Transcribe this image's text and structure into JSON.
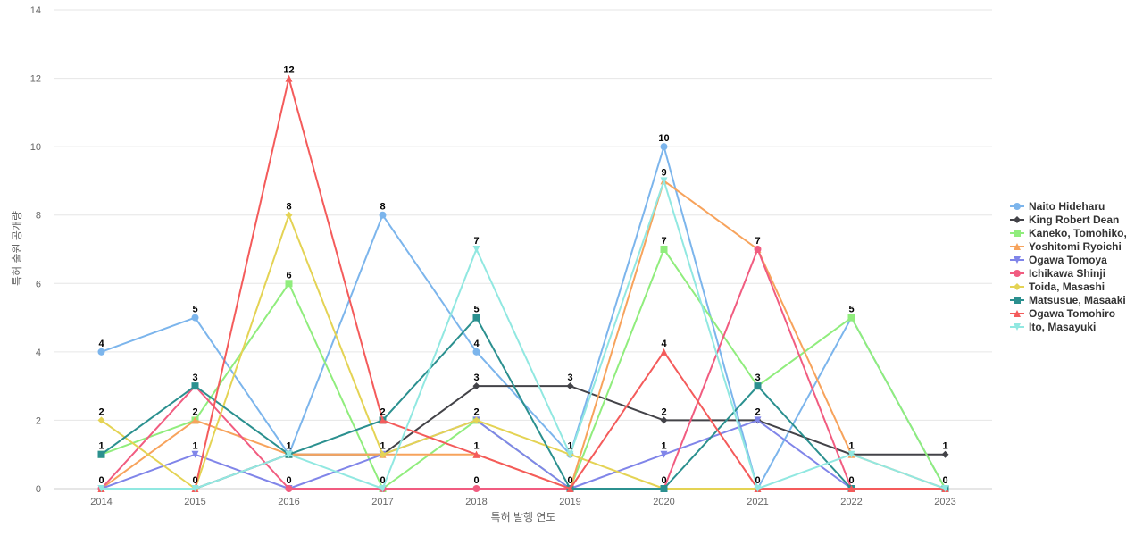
{
  "chart_data": {
    "type": "line",
    "title": "",
    "xlabel": "특허 발행 연도",
    "ylabel": "특허 출원 공개량",
    "x": [
      "2014",
      "2015",
      "2016",
      "2017",
      "2018",
      "2019",
      "2020",
      "2021",
      "2022",
      "2023"
    ],
    "ylim": [
      0,
      14
    ],
    "yticks": [
      0,
      2,
      4,
      6,
      8,
      10,
      12,
      14
    ],
    "grid": true,
    "legend_position": "right",
    "series": [
      {
        "name": "Naito Hideharu",
        "color": "#7cb5ec",
        "marker": "circle",
        "values": [
          4,
          5,
          1,
          8,
          4,
          1,
          10,
          0,
          5,
          0
        ]
      },
      {
        "name": "King Robert Dean",
        "color": "#434348",
        "marker": "diamond",
        "values": [
          0,
          0,
          1,
          1,
          3,
          3,
          2,
          2,
          1,
          1
        ]
      },
      {
        "name": "Kaneko, Tomohiko,",
        "color": "#90ed7d",
        "marker": "square",
        "values": [
          1,
          2,
          6,
          0,
          2,
          0,
          7,
          3,
          5,
          0
        ]
      },
      {
        "name": "Yoshitomi Ryoichi",
        "color": "#f7a35c",
        "marker": "triangle",
        "values": [
          0,
          2,
          1,
          1,
          1,
          0,
          9,
          7,
          1,
          0
        ]
      },
      {
        "name": "Ogawa Tomoya",
        "color": "#8085e9",
        "marker": "triangle-down",
        "values": [
          0,
          1,
          0,
          1,
          2,
          0,
          1,
          2,
          0,
          0
        ]
      },
      {
        "name": "Ichikawa Shinji",
        "color": "#f15c80",
        "marker": "circle",
        "values": [
          0,
          3,
          0,
          0,
          0,
          0,
          0,
          7,
          0,
          0
        ]
      },
      {
        "name": "Toida, Masashi",
        "color": "#e4d354",
        "marker": "diamond",
        "values": [
          2,
          0,
          8,
          1,
          2,
          1,
          0,
          0,
          0,
          0
        ]
      },
      {
        "name": "Matsusue, Masaaki",
        "color": "#2b908f",
        "marker": "square",
        "values": [
          1,
          3,
          1,
          2,
          5,
          0,
          0,
          3,
          0,
          0
        ]
      },
      {
        "name": "Ogawa Tomohiro",
        "color": "#f45b5b",
        "marker": "triangle",
        "values": [
          0,
          0,
          12,
          2,
          1,
          0,
          4,
          0,
          0,
          0
        ]
      },
      {
        "name": "Ito, Masayuki",
        "color": "#91e8e1",
        "marker": "triangle-down",
        "values": [
          0,
          0,
          1,
          0,
          7,
          1,
          9,
          0,
          1,
          0
        ]
      }
    ],
    "data_labels": [
      {
        "x": "2014",
        "series": "Naito Hideharu",
        "text": "4"
      },
      {
        "x": "2014",
        "series": "Toida, Masashi",
        "text": "2"
      },
      {
        "x": "2014",
        "series": "Kaneko, Tomohiko,",
        "text": "1"
      },
      {
        "x": "2014",
        "series": "Ogawa Tomohiro",
        "text": "0"
      },
      {
        "x": "2015",
        "series": "Naito Hideharu",
        "text": "5"
      },
      {
        "x": "2015",
        "series": "Matsusue, Masaaki",
        "text": "3"
      },
      {
        "x": "2015",
        "series": "Yoshitomi Ryoichi",
        "text": "2"
      },
      {
        "x": "2015",
        "series": "Ogawa Tomoya",
        "text": "1"
      },
      {
        "x": "2015",
        "series": "Ogawa Tomohiro",
        "text": "0"
      },
      {
        "x": "2016",
        "series": "Ogawa Tomohiro",
        "text": "12"
      },
      {
        "x": "2016",
        "series": "Toida, Masashi",
        "text": "8"
      },
      {
        "x": "2016",
        "series": "Kaneko, Tomohiko,",
        "text": "6"
      },
      {
        "x": "2016",
        "series": "Naito Hideharu",
        "text": "1"
      },
      {
        "x": "2016",
        "series": "Ogawa Tomoya",
        "text": "0"
      },
      {
        "x": "2017",
        "series": "Naito Hideharu",
        "text": "8"
      },
      {
        "x": "2017",
        "series": "Ogawa Tomohiro",
        "text": "2"
      },
      {
        "x": "2017",
        "series": "Toida, Masashi",
        "text": "1"
      },
      {
        "x": "2017",
        "series": "Ito, Masayuki",
        "text": "0"
      },
      {
        "x": "2018",
        "series": "Ito, Masayuki",
        "text": "7"
      },
      {
        "x": "2018",
        "series": "Matsusue, Masaaki",
        "text": "5"
      },
      {
        "x": "2018",
        "series": "Naito Hideharu",
        "text": "4"
      },
      {
        "x": "2018",
        "series": "King Robert Dean",
        "text": "3"
      },
      {
        "x": "2018",
        "series": "Ogawa Tomoya",
        "text": "2"
      },
      {
        "x": "2018",
        "series": "Ogawa Tomohiro",
        "text": "1"
      },
      {
        "x": "2018",
        "series": "Ichikawa Shinji",
        "text": "0"
      },
      {
        "x": "2019",
        "series": "King Robert Dean",
        "text": "3"
      },
      {
        "x": "2019",
        "series": "Naito Hideharu",
        "text": "1"
      },
      {
        "x": "2019",
        "series": "Ogawa Tomohiro",
        "text": "0"
      },
      {
        "x": "2020",
        "series": "Naito Hideharu",
        "text": "10"
      },
      {
        "x": "2020",
        "series": "Ito, Masayuki",
        "text": "9"
      },
      {
        "x": "2020",
        "series": "Kaneko, Tomohiko,",
        "text": "7"
      },
      {
        "x": "2020",
        "series": "Ogawa Tomohiro",
        "text": "4"
      },
      {
        "x": "2020",
        "series": "King Robert Dean",
        "text": "2"
      },
      {
        "x": "2020",
        "series": "Ogawa Tomoya",
        "text": "1"
      },
      {
        "x": "2020",
        "series": "Matsusue, Masaaki",
        "text": "0"
      },
      {
        "x": "2021",
        "series": "Ichikawa Shinji",
        "text": "7"
      },
      {
        "x": "2021",
        "series": "Kaneko, Tomohiko,",
        "text": "3"
      },
      {
        "x": "2021",
        "series": "Ogawa Tomoya",
        "text": "2"
      },
      {
        "x": "2021",
        "series": "Ito, Masayuki",
        "text": "0"
      },
      {
        "x": "2022",
        "series": "Kaneko, Tomohiko,",
        "text": "5"
      },
      {
        "x": "2022",
        "series": "King Robert Dean",
        "text": "1"
      },
      {
        "x": "2022",
        "series": "Ogawa Tomohiro",
        "text": "0"
      },
      {
        "x": "2023",
        "series": "King Robert Dean",
        "text": "1"
      },
      {
        "x": "2023",
        "series": "Ito, Masayuki",
        "text": "0"
      }
    ]
  }
}
